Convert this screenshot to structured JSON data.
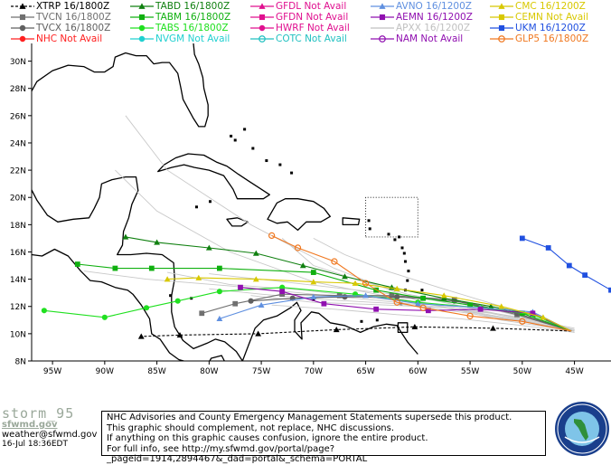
{
  "legend": [
    {
      "label": "XTRP 16/1800Z",
      "color": "#000000",
      "marker": "triangle",
      "dash": true,
      "available": true
    },
    {
      "label": "TVCN 16/1800Z",
      "color": "#707070",
      "marker": "square",
      "dash": false,
      "available": true
    },
    {
      "label": "TVCX 16/1800Z",
      "color": "#606060",
      "marker": "circle",
      "dash": false,
      "available": true
    },
    {
      "label": "NHC  Not Avail",
      "color": "#ff2020",
      "marker": "circle",
      "dash": false,
      "available": false
    },
    {
      "label": "TABD 16/1800Z",
      "color": "#108010",
      "marker": "triangle",
      "dash": false,
      "available": true
    },
    {
      "label": "TABM 16/1800Z",
      "color": "#10b010",
      "marker": "square",
      "dash": false,
      "available": true
    },
    {
      "label": "TABS 16/1800Z",
      "color": "#20e020",
      "marker": "circle",
      "dash": false,
      "available": true
    },
    {
      "label": "NVGM Not Avail",
      "color": "#20d0d0",
      "marker": "circle",
      "dash": false,
      "available": false
    },
    {
      "label": "GFDL Not Avail",
      "color": "#e0108f",
      "marker": "triangle",
      "dash": false,
      "available": false
    },
    {
      "label": "GFDN Not Avail",
      "color": "#e0108f",
      "marker": "square",
      "dash": false,
      "available": false
    },
    {
      "label": "HWRF Not Avail",
      "color": "#e0108f",
      "marker": "circle",
      "dash": false,
      "available": false
    },
    {
      "label": "COTC Not Avail",
      "color": "#20c0c0",
      "marker": "ocircle",
      "dash": false,
      "available": false
    },
    {
      "label": "AVNO 16/1200Z",
      "color": "#6090e0",
      "marker": "triangle",
      "dash": false,
      "available": true
    },
    {
      "label": "AEMN 16/1200Z",
      "color": "#9010b0",
      "marker": "square",
      "dash": false,
      "available": true
    },
    {
      "label": "APXX 16/1200Z",
      "color": "#c0c0c0",
      "marker": "none",
      "dash": false,
      "available": true
    },
    {
      "label": "NAM  Not Avail",
      "color": "#9010b0",
      "marker": "ocircle",
      "dash": false,
      "available": false
    },
    {
      "label": "CMC  16/1200Z",
      "color": "#d8c800",
      "marker": "triangle",
      "dash": false,
      "available": true
    },
    {
      "label": "CEMN Not Avail",
      "color": "#d8c800",
      "marker": "square",
      "dash": false,
      "available": false
    },
    {
      "label": "UKM  16/1200Z",
      "color": "#2050e0",
      "marker": "square",
      "dash": false,
      "available": true
    },
    {
      "label": "GLP5 16/1800Z",
      "color": "#f07820",
      "marker": "ocircle",
      "dash": false,
      "available": true
    }
  ],
  "chart_data": {
    "type": "line",
    "title": "",
    "xlabel": "",
    "ylabel": "",
    "xlim": [
      -97,
      -41.5
    ],
    "ylim": [
      8,
      31.3
    ],
    "xticks": [
      -95,
      -90,
      -85,
      -80,
      -75,
      -70,
      -65,
      -60,
      -55,
      -50,
      -45
    ],
    "xtick_labels": [
      "95W",
      "90W",
      "85W",
      "80W",
      "75W",
      "70W",
      "65W",
      "60W",
      "55W",
      "50W",
      "45W"
    ],
    "yticks": [
      8,
      10,
      12,
      14,
      16,
      18,
      20,
      22,
      24,
      26,
      28,
      30
    ],
    "ytick_labels": [
      "8N",
      "10N",
      "12N",
      "14N",
      "16N",
      "18N",
      "20N",
      "22N",
      "24N",
      "26N",
      "28N",
      "30N"
    ],
    "grid": false,
    "series": [
      {
        "name": "APXX",
        "color": "#c8c8c8",
        "marker": "none",
        "points": [
          [
            -45,
            10.2
          ],
          [
            -52,
            11
          ],
          [
            -60,
            12.4
          ],
          [
            -68,
            14.8
          ],
          [
            -76,
            18
          ],
          [
            -84,
            22
          ],
          [
            -88,
            26
          ]
        ]
      },
      {
        "name": "APXX",
        "color": "#c8c8c8",
        "marker": "none",
        "points": [
          [
            -45,
            10.3
          ],
          [
            -53,
            11.3
          ],
          [
            -62,
            12.6
          ],
          [
            -70,
            13.8
          ],
          [
            -78,
            16
          ],
          [
            -85,
            19
          ],
          [
            -89,
            22
          ]
        ]
      },
      {
        "name": "APXX",
        "color": "#c8c8c8",
        "marker": "none",
        "points": [
          [
            -45,
            10.2
          ],
          [
            -53,
            11.5
          ],
          [
            -62,
            12.3
          ],
          [
            -70,
            12.9
          ],
          [
            -78,
            13.5
          ],
          [
            -86,
            14
          ],
          [
            -92,
            14.6
          ]
        ]
      },
      {
        "name": "APXX",
        "color": "#c8c8c8",
        "marker": "none",
        "points": [
          [
            -45,
            10.3
          ],
          [
            -53,
            11.8
          ],
          [
            -61,
            12.9
          ],
          [
            -66,
            14
          ],
          [
            -70,
            15
          ],
          [
            -73,
            17
          ]
        ]
      },
      {
        "name": "APXX",
        "color": "#c8c8c8",
        "marker": "none",
        "points": [
          [
            -45,
            10.4
          ],
          [
            -51,
            11.3
          ],
          [
            -57,
            12
          ],
          [
            -64,
            12.6
          ],
          [
            -71,
            13.2
          ],
          [
            -78,
            13.6
          ],
          [
            -84,
            14.5
          ]
        ]
      },
      {
        "name": "APXX",
        "color": "#c8c8c8",
        "marker": "none",
        "points": [
          [
            -45,
            10.2
          ],
          [
            -51,
            11.1
          ],
          [
            -57,
            11.9
          ],
          [
            -63,
            12.1
          ],
          [
            -70,
            12.3
          ],
          [
            -76,
            12.8
          ]
        ]
      },
      {
        "name": "APXX",
        "color": "#c8c8c8",
        "marker": "none",
        "points": [
          [
            -45,
            10.3
          ],
          [
            -52,
            11.4
          ],
          [
            -60,
            12.7
          ],
          [
            -67,
            13.3
          ],
          [
            -74,
            13.9
          ],
          [
            -80,
            14.4
          ]
        ]
      },
      {
        "name": "APXX",
        "color": "#c8c8c8",
        "marker": "none",
        "points": [
          [
            -45,
            10.1
          ],
          [
            -50,
            10.9
          ],
          [
            -56,
            11.6
          ],
          [
            -62,
            12.2
          ],
          [
            -69,
            12.5
          ],
          [
            -75,
            12.9
          ],
          [
            -80,
            13.3
          ]
        ]
      },
      {
        "name": "APXX",
        "color": "#c8c8c8",
        "marker": "none",
        "points": [
          [
            -45,
            10.2
          ],
          [
            -52,
            12
          ],
          [
            -58,
            13.4
          ],
          [
            -63,
            14.6
          ],
          [
            -67,
            15.8
          ],
          [
            -70,
            17
          ]
        ]
      },
      {
        "name": "APXX",
        "color": "#c8c8c8",
        "marker": "none",
        "points": [
          [
            -45,
            10.1
          ],
          [
            -50,
            10.6
          ],
          [
            -56,
            11.1
          ],
          [
            -62,
            11.4
          ],
          [
            -68,
            11.8
          ],
          [
            -74,
            12.1
          ]
        ]
      },
      {
        "name": "XTRP",
        "color": "#000000",
        "marker": "triangle",
        "dash": true,
        "points": [
          [
            -45.3,
            10.2
          ],
          [
            -52.8,
            10.4
          ],
          [
            -60.3,
            10.5
          ],
          [
            -67.8,
            10.3
          ],
          [
            -75.3,
            10
          ],
          [
            -82.8,
            9.9
          ],
          [
            -86.5,
            9.8
          ]
        ]
      },
      {
        "name": "TVCN",
        "color": "#707070",
        "marker": "square",
        "points": [
          [
            -45.3,
            10.2
          ],
          [
            -50.5,
            11.4
          ],
          [
            -56.5,
            12.5
          ],
          [
            -62.5,
            12.8
          ],
          [
            -67.5,
            12.8
          ],
          [
            -73,
            12.9
          ],
          [
            -77.5,
            12.2
          ],
          [
            -80.7,
            11.5
          ]
        ]
      },
      {
        "name": "TVCX",
        "color": "#606060",
        "marker": "circle",
        "points": [
          [
            -45.3,
            10.2
          ],
          [
            -50.5,
            11.5
          ],
          [
            -56.5,
            12.4
          ],
          [
            -62,
            12.7
          ],
          [
            -67,
            12.7
          ],
          [
            -72,
            12.6
          ],
          [
            -76,
            12.4
          ]
        ]
      },
      {
        "name": "TABD",
        "color": "#108010",
        "marker": "triangle",
        "points": [
          [
            -45.3,
            10.2
          ],
          [
            -49,
            11.4
          ],
          [
            -53,
            12
          ],
          [
            -57.5,
            12.6
          ],
          [
            -62.5,
            13.4
          ],
          [
            -67,
            14.2
          ],
          [
            -71,
            15
          ],
          [
            -75.5,
            15.9
          ],
          [
            -80,
            16.3
          ],
          [
            -85,
            16.7
          ],
          [
            -88,
            17.1
          ]
        ]
      },
      {
        "name": "TABM",
        "color": "#10b010",
        "marker": "square",
        "points": [
          [
            -45.3,
            10.2
          ],
          [
            -50,
            11.5
          ],
          [
            -55,
            12.1
          ],
          [
            -59.5,
            12.6
          ],
          [
            -64,
            13.2
          ],
          [
            -70,
            14.5
          ],
          [
            -79,
            14.8
          ],
          [
            -85.5,
            14.8
          ],
          [
            -89,
            14.8
          ],
          [
            -92.6,
            15.1
          ]
        ]
      },
      {
        "name": "TABS",
        "color": "#20e020",
        "marker": "circle",
        "points": [
          [
            -45.3,
            10.2
          ],
          [
            -49,
            11.4
          ],
          [
            -54,
            11.9
          ],
          [
            -60,
            12.3
          ],
          [
            -66,
            12.9
          ],
          [
            -73,
            13.4
          ],
          [
            -79,
            13.1
          ],
          [
            -83,
            12.4
          ],
          [
            -86,
            11.9
          ],
          [
            -90,
            11.2
          ],
          [
            -95.8,
            11.7
          ]
        ]
      },
      {
        "name": "AVNO",
        "color": "#6090e0",
        "marker": "triangle",
        "points": [
          [
            -45.3,
            10.2
          ],
          [
            -49,
            11.6
          ],
          [
            -54,
            11.9
          ],
          [
            -60,
            12.2
          ],
          [
            -65,
            12.8
          ],
          [
            -70,
            12.7
          ],
          [
            -75,
            12.1
          ],
          [
            -79,
            11.1
          ]
        ]
      },
      {
        "name": "AEMN",
        "color": "#9010b0",
        "marker": "square",
        "points": [
          [
            -45.3,
            10.2
          ],
          [
            -49,
            11.5
          ],
          [
            -54,
            11.8
          ],
          [
            -59,
            11.7
          ],
          [
            -64,
            11.8
          ],
          [
            -69,
            12.2
          ],
          [
            -73,
            13.1
          ],
          [
            -77,
            13.4
          ]
        ]
      },
      {
        "name": "CMC",
        "color": "#d8c800",
        "marker": "triangle",
        "points": [
          [
            -45.3,
            10.2
          ],
          [
            -48,
            11.2
          ],
          [
            -52,
            12
          ],
          [
            -57.5,
            12.8
          ],
          [
            -62,
            13.3
          ],
          [
            -66,
            13.7
          ],
          [
            -70,
            13.8
          ],
          [
            -75.5,
            14
          ],
          [
            -81,
            14.1
          ],
          [
            -84,
            14
          ]
        ]
      },
      {
        "name": "UKM",
        "color": "#2050e0",
        "marker": "square",
        "points": [
          [
            -41.5,
            13.2
          ],
          [
            -44,
            14.3
          ],
          [
            -45.5,
            15
          ],
          [
            -47.5,
            16.3
          ],
          [
            -50,
            17
          ]
        ]
      },
      {
        "name": "GLP5",
        "color": "#f07820",
        "marker": "ocircle",
        "points": [
          [
            -45.3,
            10.2
          ],
          [
            -50,
            10.9
          ],
          [
            -55,
            11.3
          ],
          [
            -59.5,
            11.9
          ],
          [
            -62,
            12.3
          ],
          [
            -65,
            13.7
          ],
          [
            -68,
            15.3
          ],
          [
            -71.5,
            16.3
          ],
          [
            -74,
            17.2
          ]
        ]
      }
    ]
  },
  "footer": {
    "brand_name": "storm_95",
    "brand_site": "sfwmd.gov",
    "email": "weather@sfwmd.gov",
    "timestamp": "16-Jul 18:36EDT",
    "notice_lines": [
      "NHC Advisories and County Emergency Management Statements supersede this product.",
      "This graphic should complement, not replace, NHC discussions.",
      "If anything on this graphic causes confusion, ignore the entire product.",
      "For full info, see  http://my.sfwmd.gov/portal/page?_pageid=1914,2894467&_dad=portal&_schema=PORTAL"
    ]
  }
}
